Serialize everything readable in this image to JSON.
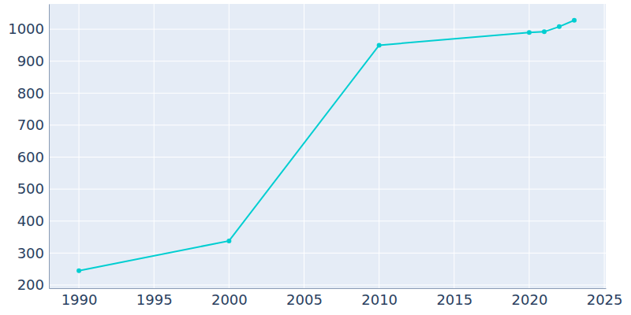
{
  "chart_data": {
    "type": "line",
    "x": [
      1990,
      2000,
      2010,
      2020,
      2021,
      2022,
      2023
    ],
    "values": [
      245,
      338,
      950,
      990,
      992,
      1008,
      1028
    ],
    "color": "#00ced1",
    "marker": "circle",
    "xlim": [
      1988,
      2025.1
    ],
    "xticks": [
      1990,
      1995,
      2000,
      2005,
      2010,
      2015,
      2020,
      2025
    ],
    "ylim": [
      190,
      1079
    ],
    "yticks": [
      200,
      300,
      400,
      500,
      600,
      700,
      800,
      900,
      1000
    ],
    "grid": true
  }
}
